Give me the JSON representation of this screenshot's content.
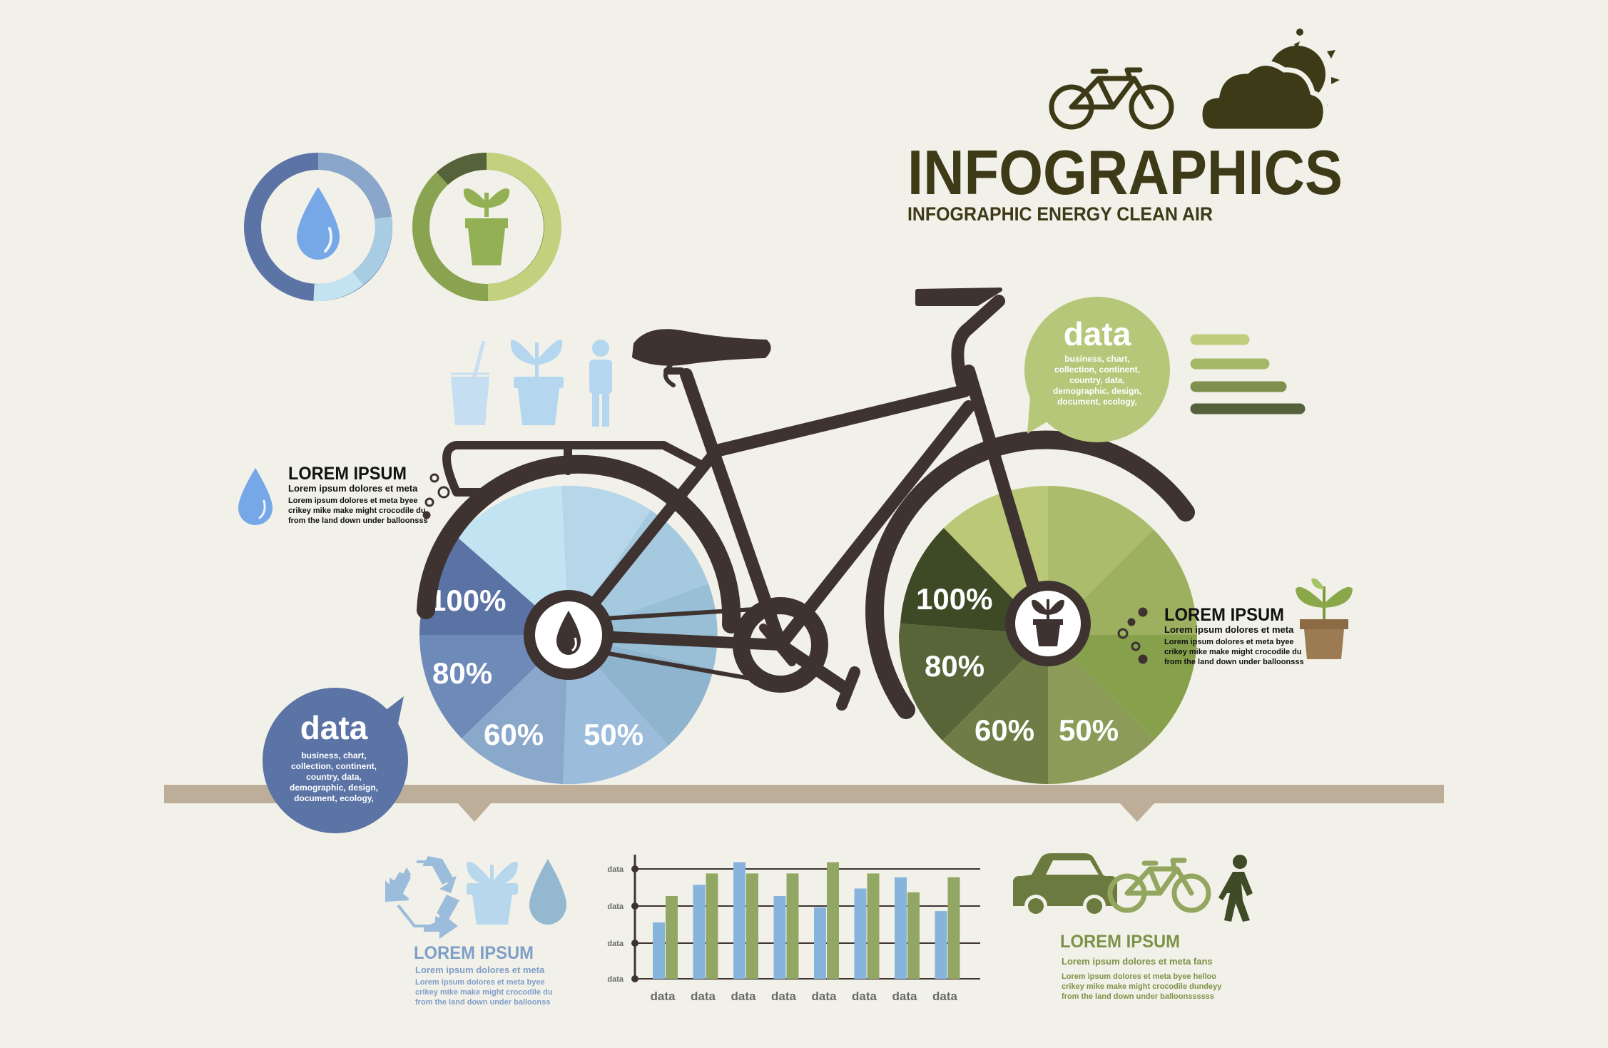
{
  "header": {
    "title": "INFOGRAPHICS",
    "subtitle": "INFOGRAPHIC ENERGY CLEAN AIR"
  },
  "colors": {
    "background": "#f2f1e9",
    "bike_frame": "#3e3331",
    "blue_dark": "#5b74a5",
    "blue_mid": "#8fb0cf",
    "blue_light": "#c4e3f1",
    "green_dark": "#3f4a26",
    "green_mid": "#7d9148",
    "green_light": "#b9c777",
    "ground": "#bcae98",
    "title": "#3d3a17"
  },
  "left_wheel": {
    "labels": [
      "100%",
      "80%",
      "60%",
      "50%"
    ]
  },
  "right_wheel": {
    "labels": [
      "100%",
      "80%",
      "60%",
      "50%"
    ]
  },
  "bubble_left": {
    "title": "data",
    "lines": [
      "business, chart,",
      "collection, continent,",
      "country, data,",
      "demographic, design,",
      "document, ecology,"
    ]
  },
  "bubble_right": {
    "title": "data",
    "lines": [
      "business, chart,",
      "collection, continent,",
      "country, data,",
      "demographic, design,",
      "document, ecology,"
    ]
  },
  "lorem_left": {
    "title": "LOREM IPSUM",
    "lines": [
      "Lorem ipsum dolores et meta",
      "Lorem ipsum dolores et meta byee",
      "crikey mike make might crocodile du",
      "from the land down under balloonsss"
    ]
  },
  "lorem_right": {
    "title": "LOREM IPSUM",
    "lines": [
      "Lorem ipsum dolores et meta",
      "Lorem ipsum dolores et meta byee",
      "crikey mike make might crocodile du",
      "from the land down under balloonsss"
    ]
  },
  "lorem_bottom_left": {
    "title": "LOREM IPSUM",
    "lines": [
      "Lorem ipsum dolores et meta",
      "Lorem ipsum dolores et meta byee",
      "crikey mike make might crocodile du",
      "from the land down under balloonss"
    ]
  },
  "lorem_bottom_right": {
    "title": "LOREM IPSUM",
    "lines": [
      "Lorem ipsum dolores et meta fans",
      "Lorem ipsum dolores et meta byee helloo",
      "crikey mike make might crocodile dundeyy",
      "from the land down under balloonssssss"
    ]
  },
  "icons": [
    "bicycle-icon",
    "cloud-sun-icon",
    "water-drop-icon",
    "plant-pot-icon",
    "glass-icon",
    "person-icon",
    "recycle-icon",
    "car-icon",
    "walking-person-icon"
  ],
  "chart_data": {
    "type": "bar",
    "categories": [
      "data",
      "data",
      "data",
      "data",
      "data",
      "data",
      "data",
      "data"
    ],
    "y_tick_labels": [
      "data",
      "data",
      "data",
      "data"
    ],
    "series": [
      {
        "color": "#86b4dd",
        "values": [
          1.5,
          2.5,
          3.1,
          2.2,
          1.9,
          2.4,
          2.7,
          1.8
        ]
      },
      {
        "color": "#93a765",
        "values": [
          2.2,
          2.8,
          2.8,
          2.8,
          3.1,
          2.8,
          2.3,
          2.7
        ]
      }
    ],
    "ylim": [
      0,
      3.3
    ],
    "grid": true
  }
}
